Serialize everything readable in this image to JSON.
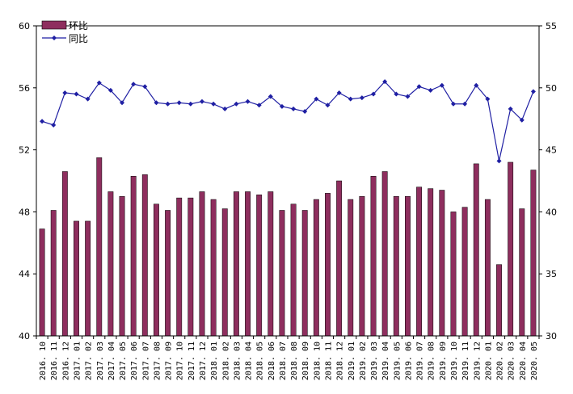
{
  "chart_data": {
    "type": "bar",
    "categories": [
      "2016.10",
      "2016.11",
      "2016.12",
      "2017.01",
      "2017.02",
      "2017.03",
      "2017.04",
      "2017.05",
      "2017.06",
      "2017.07",
      "2017.08",
      "2017.09",
      "2017.10",
      "2017.11",
      "2017.12",
      "2018.01",
      "2018.02",
      "2018.03",
      "2018.04",
      "2018.05",
      "2018.06",
      "2018.07",
      "2018.08",
      "2018.09",
      "2018.10",
      "2018.11",
      "2018.12",
      "2019.01",
      "2019.02",
      "2019.03",
      "2019.04",
      "2019.05",
      "2019.06",
      "2019.07",
      "2019.08",
      "2019.09",
      "2019.10",
      "2019.11",
      "2019.12",
      "2020.01",
      "2020.02",
      "2020.03",
      "2020.04",
      "2020.05"
    ],
    "series": [
      {
        "name": "环比",
        "type": "bar",
        "axis": "left",
        "color": "#8e2e5e",
        "values": [
          46.9,
          48.1,
          50.6,
          47.4,
          47.4,
          51.5,
          49.3,
          49.0,
          50.3,
          50.4,
          48.5,
          48.1,
          48.9,
          48.9,
          49.3,
          48.8,
          48.2,
          49.3,
          49.3,
          49.1,
          49.3,
          48.1,
          48.5,
          48.1,
          48.8,
          49.2,
          50.0,
          48.8,
          49.0,
          50.3,
          50.6,
          49.0,
          49.0,
          49.6,
          49.5,
          49.4,
          48.0,
          48.3,
          51.1,
          48.8,
          44.6,
          51.2,
          48.2,
          50.7
        ]
      },
      {
        "name": "同比",
        "type": "line",
        "axis": "right",
        "color": "#1f1fa3",
        "values": [
          47.3,
          47.0,
          49.6,
          49.5,
          49.1,
          50.4,
          49.8,
          48.8,
          50.3,
          50.1,
          48.8,
          48.7,
          48.8,
          48.7,
          48.9,
          48.7,
          48.3,
          48.7,
          48.9,
          48.6,
          49.3,
          48.5,
          48.3,
          48.1,
          49.1,
          48.6,
          49.6,
          49.1,
          49.2,
          49.5,
          50.5,
          49.5,
          49.3,
          50.1,
          49.8,
          50.2,
          48.7,
          48.7,
          50.2,
          49.1,
          44.1,
          48.3,
          47.4,
          49.7
        ]
      }
    ],
    "ylim": [
      40,
      60
    ],
    "yticks": [
      "40",
      "44",
      "48",
      "52",
      "56",
      "60"
    ],
    "y2lim": [
      30,
      55
    ],
    "y2ticks": [
      "30",
      "35",
      "40",
      "45",
      "50",
      "55"
    ],
    "xtick_labels": [
      "2016. 10",
      "2016. 11",
      "2016. 12",
      "2017. 01",
      "2017. 02",
      "2017. 03",
      "2017. 04",
      "2017. 05",
      "2017. 06",
      "2017. 07",
      "2017. 08",
      "2017. 09",
      "2017. 10",
      "2017. 11",
      "2017. 12",
      "2018. 01",
      "2018. 02",
      "2018. 03",
      "2018. 04",
      "2018. 05",
      "2018. 06",
      "2018. 07",
      "2018. 08",
      "2018. 09",
      "2018. 10",
      "2018. 11",
      "2018. 12",
      "2019. 01",
      "2019. 02",
      "2019. 03",
      "2019. 04",
      "2019. 05",
      "2019. 06",
      "2019. 07",
      "2019. 08",
      "2019. 09",
      "2019. 10",
      "2019. 11",
      "2019. 12",
      "2020. 01",
      "2020. 02",
      "2020. 03",
      "2020. 04",
      "2020. 05"
    ],
    "legend": {
      "position": "top-left",
      "entries": [
        "环比",
        "同比"
      ]
    },
    "grid": false,
    "title": ""
  }
}
